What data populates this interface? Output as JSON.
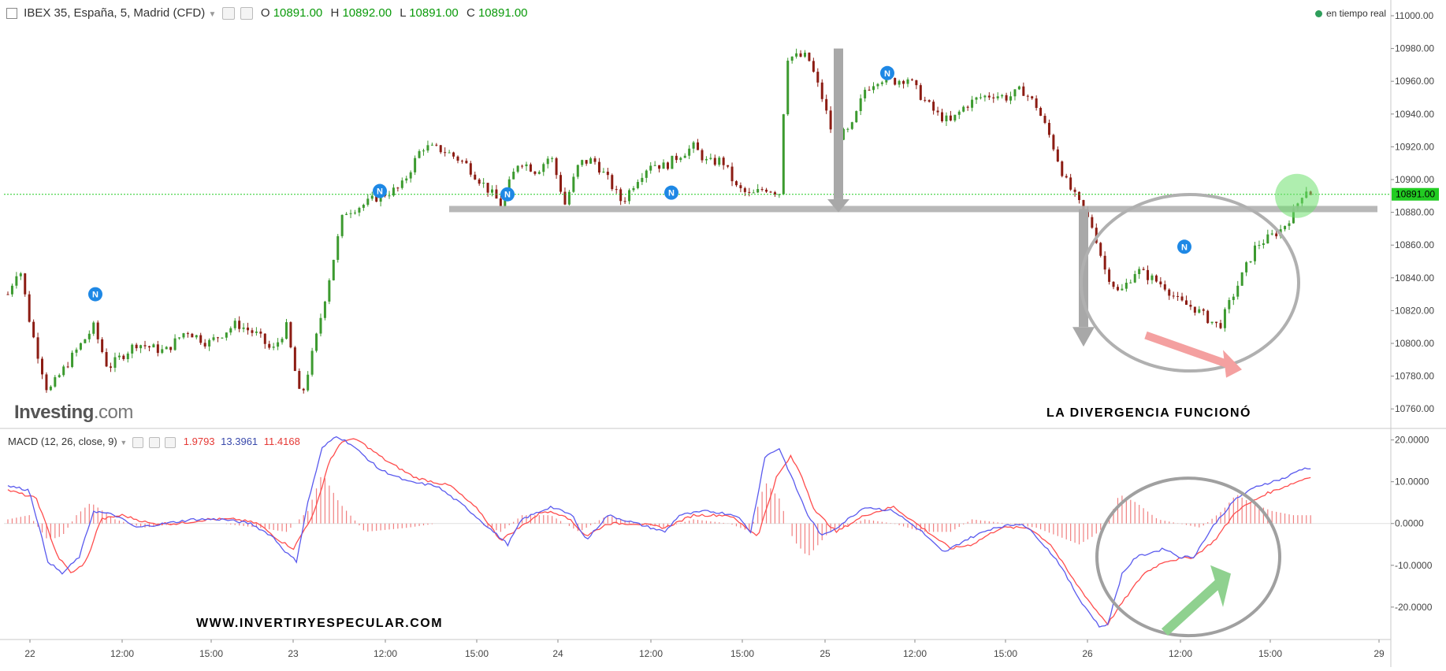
{
  "header": {
    "symbol": "IBEX 35, España, 5, Madrid (CFD)",
    "o_label": "O",
    "o_value": "10891.00",
    "h_label": "H",
    "h_value": "10892.00",
    "l_label": "L",
    "l_value": "10891.00",
    "c_label": "C",
    "c_value": "10891.00",
    "realtime": "en tiempo real"
  },
  "macd_header": {
    "label": "MACD (12, 26, close, 9)",
    "hist": "1.9793",
    "macd": "13.3961",
    "signal": "11.4168"
  },
  "branding": {
    "logo_main": "Investing",
    "logo_suffix": ".com"
  },
  "annotations": {
    "divergence": "LA DIVERGENCIA FUNCIONÓ",
    "website": "WWW.INVERTIRYESPECULAR.COM"
  },
  "colors": {
    "up": "#3c9a2f",
    "down": "#8c1c13",
    "macd_line": "#5a5aee",
    "signal_line": "#ff4d4d",
    "histogram": "#f08080",
    "price_line": "#22cc22",
    "price_tag": "#22cc22",
    "news": "#1e88e5"
  },
  "chart_data": [
    {
      "type": "candlestick",
      "title": "IBEX 35, España, 5, Madrid (CFD)",
      "x_ticks": [
        "22",
        "12:00",
        "15:00",
        "23",
        "12:00",
        "15:00",
        "24",
        "12:00",
        "15:00",
        "25",
        "12:00",
        "15:00",
        "26",
        "12:00",
        "15:00",
        "29"
      ],
      "y_ticks": [
        11000,
        10980,
        10960,
        10940,
        10920,
        10900,
        10880,
        10860,
        10840,
        10820,
        10800,
        10780,
        10760
      ],
      "ylim": [
        10750,
        11000
      ],
      "last_price": "10891.00",
      "close_path": [
        [
          0,
          10830
        ],
        [
          8,
          10848
        ],
        [
          16,
          10810
        ],
        [
          28,
          10770
        ],
        [
          45,
          10792
        ],
        [
          60,
          10810
        ],
        [
          70,
          10785
        ],
        [
          90,
          10800
        ],
        [
          110,
          10795
        ],
        [
          125,
          10808
        ],
        [
          140,
          10800
        ],
        [
          160,
          10812
        ],
        [
          175,
          10805
        ],
        [
          185,
          10795
        ],
        [
          195,
          10810
        ],
        [
          205,
          10765
        ],
        [
          215,
          10800
        ],
        [
          225,
          10840
        ],
        [
          235,
          10880
        ],
        [
          250,
          10885
        ],
        [
          260,
          10890
        ],
        [
          275,
          10895
        ],
        [
          290,
          10920
        ],
        [
          305,
          10918
        ],
        [
          320,
          10910
        ],
        [
          335,
          10895
        ],
        [
          345,
          10885
        ],
        [
          358,
          10912
        ],
        [
          370,
          10905
        ],
        [
          380,
          10915
        ],
        [
          390,
          10885
        ],
        [
          400,
          10910
        ],
        [
          410,
          10912
        ],
        [
          420,
          10900
        ],
        [
          430,
          10886
        ],
        [
          440,
          10900
        ],
        [
          450,
          10910
        ],
        [
          460,
          10908
        ],
        [
          470,
          10915
        ],
        [
          480,
          10920
        ],
        [
          490,
          10910
        ],
        [
          500,
          10912
        ],
        [
          510,
          10895
        ],
        [
          520,
          10890
        ],
        [
          530,
          10895
        ],
        [
          540,
          10892
        ],
        [
          545,
          10975
        ],
        [
          560,
          10975
        ],
        [
          570,
          10950
        ],
        [
          578,
          10925
        ],
        [
          590,
          10930
        ],
        [
          600,
          10955
        ],
        [
          610,
          10962
        ],
        [
          620,
          10960
        ],
        [
          630,
          10962
        ],
        [
          640,
          10950
        ],
        [
          650,
          10940
        ],
        [
          660,
          10935
        ],
        [
          670,
          10945
        ],
        [
          680,
          10950
        ],
        [
          690,
          10952
        ],
        [
          700,
          10950
        ],
        [
          710,
          10955
        ],
        [
          720,
          10945
        ],
        [
          730,
          10925
        ],
        [
          740,
          10900
        ],
        [
          750,
          10885
        ],
        [
          760,
          10870
        ],
        [
          768,
          10845
        ],
        [
          778,
          10830
        ],
        [
          790,
          10845
        ],
        [
          800,
          10840
        ],
        [
          810,
          10835
        ],
        [
          820,
          10825
        ],
        [
          830,
          10822
        ],
        [
          840,
          10815
        ],
        [
          848,
          10810
        ],
        [
          858,
          10830
        ],
        [
          866,
          10845
        ],
        [
          874,
          10860
        ],
        [
          884,
          10865
        ],
        [
          892,
          10870
        ],
        [
          900,
          10880
        ],
        [
          908,
          10895
        ],
        [
          913,
          10891
        ]
      ],
      "news_markers": [
        "N",
        "N",
        "N",
        "N",
        "N",
        "N"
      ]
    },
    {
      "type": "line",
      "title": "MACD (12, 26, close, 9)",
      "y_ticks": [
        "20.0000",
        "10.0000",
        "0.0000",
        "-10.0000",
        "-20.0000"
      ],
      "ylim": [
        -27,
        22
      ],
      "series": [
        {
          "name": "MACD",
          "values": [
            [
              0,
              9
            ],
            [
              15,
              8
            ],
            [
              28,
              -9
            ],
            [
              38,
              -12
            ],
            [
              50,
              -8
            ],
            [
              60,
              3
            ],
            [
              75,
              2
            ],
            [
              90,
              -1
            ],
            [
              110,
              0
            ],
            [
              130,
              1
            ],
            [
              150,
              1
            ],
            [
              170,
              0
            ],
            [
              185,
              -3
            ],
            [
              195,
              -7
            ],
            [
              202,
              -9
            ],
            [
              210,
              5
            ],
            [
              220,
              18
            ],
            [
              230,
              21
            ],
            [
              240,
              19
            ],
            [
              260,
              13
            ],
            [
              280,
              10
            ],
            [
              300,
              9
            ],
            [
              320,
              4
            ],
            [
              340,
              -2
            ],
            [
              350,
              -5
            ],
            [
              360,
              1
            ],
            [
              380,
              4
            ],
            [
              395,
              2
            ],
            [
              405,
              -4
            ],
            [
              420,
              2
            ],
            [
              440,
              0
            ],
            [
              460,
              -2
            ],
            [
              470,
              2
            ],
            [
              490,
              3
            ],
            [
              510,
              2
            ],
            [
              520,
              -2
            ],
            [
              530,
              16
            ],
            [
              540,
              18
            ],
            [
              550,
              10
            ],
            [
              560,
              2
            ],
            [
              570,
              -3
            ],
            [
              580,
              -1
            ],
            [
              600,
              4
            ],
            [
              620,
              3
            ],
            [
              640,
              -2
            ],
            [
              655,
              -7
            ],
            [
              670,
              -4
            ],
            [
              690,
              -1
            ],
            [
              710,
              0
            ],
            [
              720,
              -3
            ],
            [
              735,
              -9
            ],
            [
              750,
              -18
            ],
            [
              765,
              -25
            ],
            [
              770,
              -24
            ],
            [
              780,
              -12
            ],
            [
              790,
              -8
            ],
            [
              800,
              -7
            ],
            [
              810,
              -6
            ],
            [
              820,
              -8
            ],
            [
              830,
              -8
            ],
            [
              845,
              0
            ],
            [
              860,
              6
            ],
            [
              875,
              9
            ],
            [
              895,
              11
            ],
            [
              905,
              13
            ],
            [
              913,
              13.3961
            ]
          ]
        },
        {
          "name": "Signal",
          "values": [
            [
              0,
              8
            ],
            [
              20,
              6
            ],
            [
              35,
              -8
            ],
            [
              45,
              -12
            ],
            [
              55,
              -9
            ],
            [
              65,
              1
            ],
            [
              80,
              2
            ],
            [
              100,
              0
            ],
            [
              120,
              0
            ],
            [
              140,
              1
            ],
            [
              160,
              1
            ],
            [
              175,
              0
            ],
            [
              190,
              -4
            ],
            [
              200,
              -6
            ],
            [
              215,
              3
            ],
            [
              225,
              15
            ],
            [
              235,
              20
            ],
            [
              245,
              20
            ],
            [
              265,
              15
            ],
            [
              285,
              11
            ],
            [
              310,
              9
            ],
            [
              330,
              3
            ],
            [
              345,
              -4
            ],
            [
              358,
              -1
            ],
            [
              375,
              3
            ],
            [
              390,
              2
            ],
            [
              405,
              -3
            ],
            [
              420,
              0
            ],
            [
              440,
              0
            ],
            [
              460,
              -1
            ],
            [
              480,
              2
            ],
            [
              505,
              2
            ],
            [
              525,
              -3
            ],
            [
              538,
              11
            ],
            [
              548,
              16
            ],
            [
              555,
              12
            ],
            [
              565,
              3
            ],
            [
              580,
              -2
            ],
            [
              600,
              2
            ],
            [
              620,
              4
            ],
            [
              640,
              -1
            ],
            [
              660,
              -6
            ],
            [
              675,
              -5
            ],
            [
              695,
              -1
            ],
            [
              715,
              -1
            ],
            [
              730,
              -5
            ],
            [
              745,
              -13
            ],
            [
              760,
              -20
            ],
            [
              770,
              -24
            ],
            [
              780,
              -19
            ],
            [
              795,
              -12
            ],
            [
              810,
              -9
            ],
            [
              830,
              -8
            ],
            [
              845,
              -4
            ],
            [
              860,
              3
            ],
            [
              880,
              7
            ],
            [
              895,
              9
            ],
            [
              913,
              11.4168
            ]
          ]
        },
        {
          "name": "Histogram",
          "values": [
            [
              0,
              1
            ],
            [
              15,
              2
            ],
            [
              28,
              -4
            ],
            [
              38,
              -3
            ],
            [
              48,
              2
            ],
            [
              58,
              5
            ],
            [
              75,
              1
            ],
            [
              95,
              -1
            ],
            [
              120,
              0
            ],
            [
              150,
              0
            ],
            [
              175,
              -1
            ],
            [
              195,
              -2
            ],
            [
              210,
              3
            ],
            [
              220,
              12
            ],
            [
              232,
              5
            ],
            [
              250,
              -2
            ],
            [
              280,
              -1
            ],
            [
              300,
              0
            ],
            [
              330,
              0
            ],
            [
              345,
              -2
            ],
            [
              360,
              2
            ],
            [
              380,
              2
            ],
            [
              400,
              -2
            ],
            [
              420,
              2
            ],
            [
              440,
              0
            ],
            [
              460,
              -1
            ],
            [
              480,
              1
            ],
            [
              505,
              0
            ],
            [
              520,
              -2
            ],
            [
              530,
              10
            ],
            [
              540,
              6
            ],
            [
              550,
              -4
            ],
            [
              560,
              -8
            ],
            [
              575,
              -2
            ],
            [
              600,
              1
            ],
            [
              620,
              0
            ],
            [
              640,
              -2
            ],
            [
              660,
              -2
            ],
            [
              675,
              1
            ],
            [
              700,
              0
            ],
            [
              720,
              -1
            ],
            [
              735,
              -3
            ],
            [
              750,
              -5
            ],
            [
              760,
              -3
            ],
            [
              770,
              0
            ],
            [
              778,
              7
            ],
            [
              790,
              5
            ],
            [
              805,
              1
            ],
            [
              820,
              0
            ],
            [
              835,
              -1
            ],
            [
              850,
              3
            ],
            [
              860,
              7
            ],
            [
              870,
              5
            ],
            [
              885,
              3
            ],
            [
              900,
              2
            ],
            [
              913,
              1.9793
            ]
          ]
        }
      ]
    }
  ]
}
